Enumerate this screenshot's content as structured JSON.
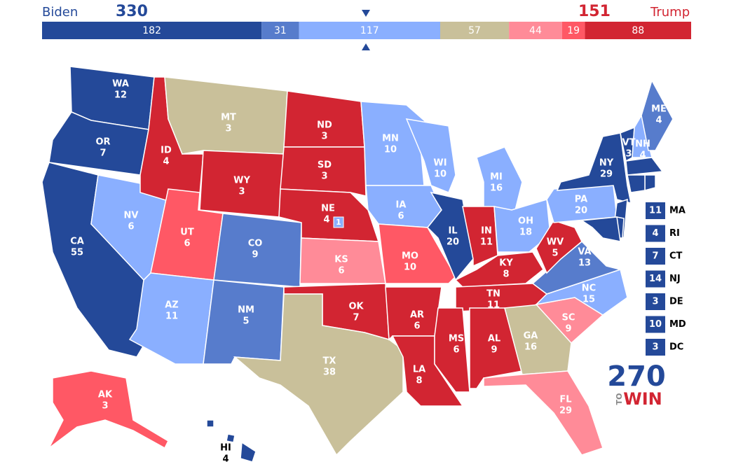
{
  "header": {
    "left_name": "Biden",
    "left_total": 330,
    "right_total": 151,
    "right_name": "Trump"
  },
  "bar": {
    "segments": [
      {
        "value": 182,
        "color": "#244999"
      },
      {
        "value": 31,
        "color": "#577ccc"
      },
      {
        "value": 117,
        "color": "#8aafff"
      },
      {
        "value": 57,
        "color": "#c9c09a"
      },
      {
        "value": 44,
        "color": "#ff8b98"
      },
      {
        "value": 19,
        "color": "#ff5865"
      },
      {
        "value": 88,
        "color": "#d22532"
      }
    ]
  },
  "states": [
    {
      "abbr": "WA",
      "ev": 12,
      "color": "#244999"
    },
    {
      "abbr": "OR",
      "ev": 7,
      "color": "#244999"
    },
    {
      "abbr": "CA",
      "ev": 55,
      "color": "#244999"
    },
    {
      "abbr": "NV",
      "ev": 6,
      "color": "#8aafff"
    },
    {
      "abbr": "ID",
      "ev": 4,
      "color": "#d22532"
    },
    {
      "abbr": "MT",
      "ev": 3,
      "color": "#c9c09a"
    },
    {
      "abbr": "WY",
      "ev": 3,
      "color": "#d22532"
    },
    {
      "abbr": "UT",
      "ev": 6,
      "color": "#ff5865"
    },
    {
      "abbr": "CO",
      "ev": 9,
      "color": "#577ccc"
    },
    {
      "abbr": "AZ",
      "ev": 11,
      "color": "#8aafff"
    },
    {
      "abbr": "NM",
      "ev": 5,
      "color": "#577ccc"
    },
    {
      "abbr": "ND",
      "ev": 3,
      "color": "#d22532"
    },
    {
      "abbr": "SD",
      "ev": 3,
      "color": "#d22532"
    },
    {
      "abbr": "NE",
      "ev": 4,
      "color": "#d22532"
    },
    {
      "abbr": "KS",
      "ev": 6,
      "color": "#ff8b98"
    },
    {
      "abbr": "OK",
      "ev": 7,
      "color": "#d22532"
    },
    {
      "abbr": "TX",
      "ev": 38,
      "color": "#c9c09a"
    },
    {
      "abbr": "MN",
      "ev": 10,
      "color": "#8aafff"
    },
    {
      "abbr": "IA",
      "ev": 6,
      "color": "#8aafff"
    },
    {
      "abbr": "MO",
      "ev": 10,
      "color": "#ff5865"
    },
    {
      "abbr": "AR",
      "ev": 6,
      "color": "#d22532"
    },
    {
      "abbr": "LA",
      "ev": 8,
      "color": "#d22532"
    },
    {
      "abbr": "WI",
      "ev": 10,
      "color": "#8aafff"
    },
    {
      "abbr": "IL",
      "ev": 20,
      "color": "#244999"
    },
    {
      "abbr": "MI",
      "ev": 16,
      "color": "#8aafff"
    },
    {
      "abbr": "IN",
      "ev": 11,
      "color": "#d22532"
    },
    {
      "abbr": "OH",
      "ev": 18,
      "color": "#8aafff"
    },
    {
      "abbr": "KY",
      "ev": 8,
      "color": "#d22532"
    },
    {
      "abbr": "TN",
      "ev": 11,
      "color": "#d22532"
    },
    {
      "abbr": "MS",
      "ev": 6,
      "color": "#d22532"
    },
    {
      "abbr": "AL",
      "ev": 9,
      "color": "#d22532"
    },
    {
      "abbr": "GA",
      "ev": 16,
      "color": "#c9c09a"
    },
    {
      "abbr": "FL",
      "ev": 29,
      "color": "#ff8b98"
    },
    {
      "abbr": "SC",
      "ev": 9,
      "color": "#ff8b98"
    },
    {
      "abbr": "NC",
      "ev": 15,
      "color": "#8aafff"
    },
    {
      "abbr": "VA",
      "ev": 13,
      "color": "#577ccc"
    },
    {
      "abbr": "WV",
      "ev": 5,
      "color": "#d22532"
    },
    {
      "abbr": "PA",
      "ev": 20,
      "color": "#8aafff"
    },
    {
      "abbr": "NY",
      "ev": 29,
      "color": "#244999"
    },
    {
      "abbr": "VT",
      "ev": 3,
      "color": "#244999"
    },
    {
      "abbr": "NH",
      "ev": 4,
      "color": "#8aafff"
    },
    {
      "abbr": "ME",
      "ev": 4,
      "color": "#577ccc"
    },
    {
      "abbr": "AK",
      "ev": 3,
      "color": "#ff5865"
    },
    {
      "abbr": "HI",
      "ev": 4,
      "color": "#244999"
    }
  ],
  "ne_district": {
    "ev": 1,
    "color": "#8aafff"
  },
  "small_states": [
    {
      "abbr": "MA",
      "ev": 11,
      "color": "#244999"
    },
    {
      "abbr": "RI",
      "ev": 4,
      "color": "#244999"
    },
    {
      "abbr": "CT",
      "ev": 7,
      "color": "#244999"
    },
    {
      "abbr": "NJ",
      "ev": 14,
      "color": "#244999"
    },
    {
      "abbr": "DE",
      "ev": 3,
      "color": "#244999"
    },
    {
      "abbr": "MD",
      "ev": 10,
      "color": "#244999"
    },
    {
      "abbr": "DC",
      "ev": 3,
      "color": "#244999"
    }
  ],
  "logo": {
    "number": "270",
    "small": "TO",
    "word": "WIN"
  }
}
